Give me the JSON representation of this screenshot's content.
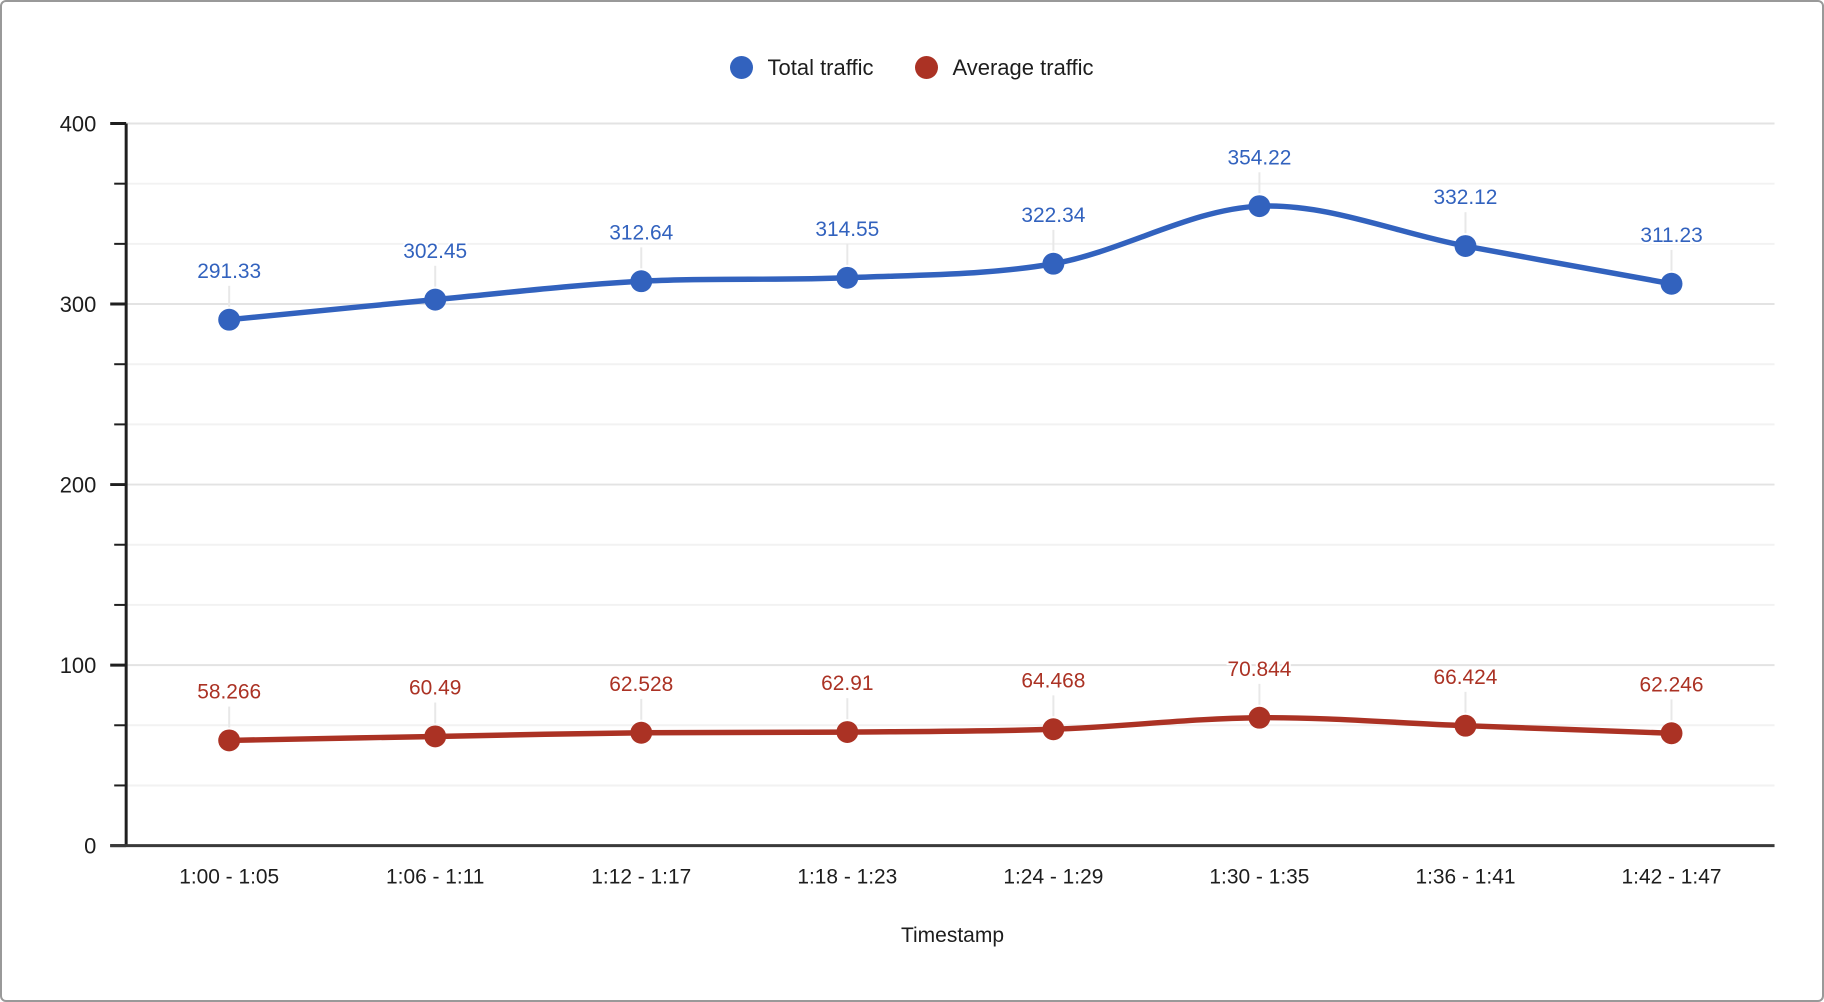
{
  "frame": {
    "background": "#ffffff",
    "border_color": "#999999"
  },
  "chart_data": {
    "type": "line",
    "smooth": true,
    "title": "",
    "xlabel": "Timestamp",
    "ylabel": "",
    "categories": [
      "1:00 - 1:05",
      "1:06 - 1:11",
      "1:12 - 1:17",
      "1:18 - 1:23",
      "1:24 - 1:29",
      "1:30 - 1:35",
      "1:36 - 1:41",
      "1:42 - 1:47"
    ],
    "series": [
      {
        "name": "Total traffic",
        "color": "#3262BE",
        "values": [
          291.33,
          302.45,
          312.64,
          314.55,
          322.34,
          354.22,
          332.12,
          311.23
        ]
      },
      {
        "name": "Average traffic",
        "color": "#AB3224",
        "values": [
          58.266,
          60.49,
          62.528,
          62.91,
          64.468,
          70.844,
          66.424,
          62.246
        ]
      }
    ],
    "ylim": [
      0,
      400
    ],
    "yticks": [
      0,
      100,
      200,
      300,
      400
    ],
    "minor_divisions_per_major": 3,
    "grid": true,
    "point_labels": true,
    "legend_position": "top",
    "colors": {
      "axis": "#1f1f1f",
      "baseline": "#3a3a3a",
      "major_gridline": "#e3e3e3",
      "minor_gridline": "#f2f2f2",
      "label_stem": "#e8e8e8",
      "tick_text": "#1d1d1d"
    }
  }
}
